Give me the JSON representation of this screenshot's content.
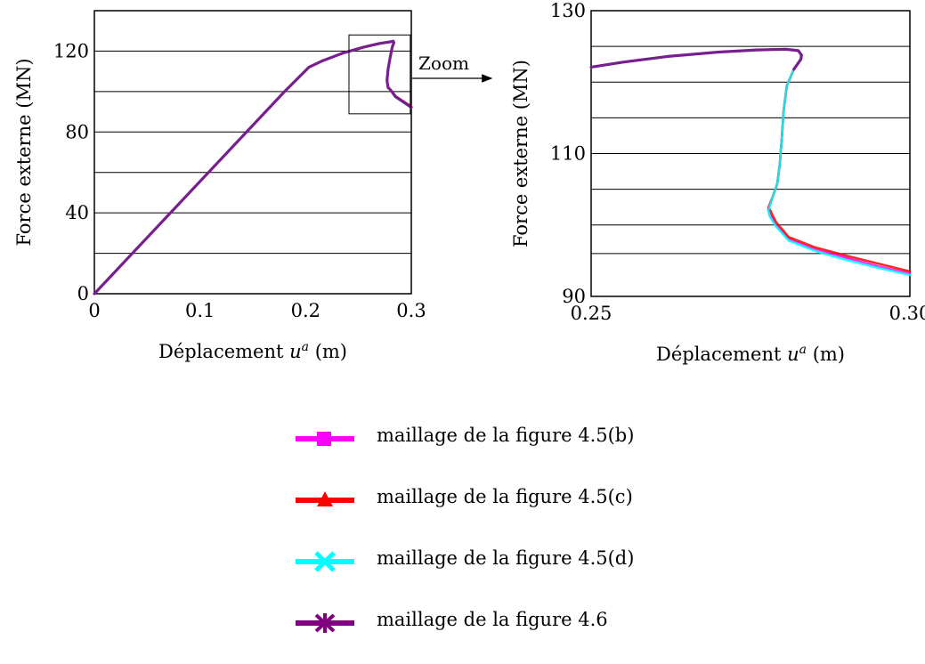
{
  "annotation": {
    "zoom_label": "Zoom"
  },
  "legend": [
    {
      "label": "maillage de la figure 4.5(b)",
      "color": "#ff00ff",
      "marker": "square"
    },
    {
      "label": "maillage de la figure 4.5(c)",
      "color": "#ff0000",
      "marker": "triangle"
    },
    {
      "label": "maillage de la figure 4.5(d)",
      "color": "#00ffff",
      "marker": "x"
    },
    {
      "label": "maillage de la figure 4.6",
      "color": "#800080",
      "marker": "star"
    }
  ],
  "chart_data": [
    {
      "type": "line",
      "xlabel_prefix": "Déplacement ",
      "xlabel_var": "u",
      "xlabel_sup": "a",
      "xlabel_suffix": " (m)",
      "ylabel": "Force externe (MN)",
      "xlim": [
        0,
        0.3
      ],
      "ylim": [
        0,
        140
      ],
      "xticks": [
        0,
        0.1,
        0.2,
        0.3
      ],
      "xtick_labels": [
        "0",
        "0.1",
        "0.2",
        "0.3"
      ],
      "yticks": [
        0,
        40,
        80,
        120
      ],
      "ytick_labels": [
        "0",
        "40",
        "80",
        "120"
      ],
      "grid_y": [
        20,
        40,
        60,
        80,
        100,
        120
      ],
      "zoom_box": {
        "x": [
          0.241,
          0.299
        ],
        "y": [
          89,
          128
        ]
      },
      "series": [
        {
          "color": "#ff00ff",
          "x": [
            0,
            0.18,
            0.203,
            0.215,
            0.235,
            0.255,
            0.27,
            0.28,
            0.283,
            0.2835,
            0.282,
            0.28,
            0.278,
            0.277,
            0.278,
            0.28,
            0.285,
            0.292,
            0.3
          ],
          "y": [
            0,
            100,
            112,
            115,
            119,
            122,
            123.8,
            124.6,
            124.9,
            124.2,
            122,
            117,
            111,
            105.5,
            102,
            101,
            97.5,
            95,
            92.2
          ]
        },
        {
          "color": "#ff0000",
          "x": [
            0,
            0.18,
            0.203,
            0.215,
            0.235,
            0.255,
            0.27,
            0.28,
            0.283,
            0.2835,
            0.282,
            0.28,
            0.278,
            0.277,
            0.278,
            0.28,
            0.285,
            0.292,
            0.3
          ],
          "y": [
            0,
            100,
            112,
            115,
            119,
            122,
            123.8,
            124.6,
            124.9,
            124.2,
            122,
            117,
            111,
            105.5,
            102,
            101,
            97.7,
            95.3,
            92.6
          ]
        },
        {
          "color": "#00ffff",
          "x": [
            0,
            0.18,
            0.203,
            0.215,
            0.235,
            0.255,
            0.27,
            0.28,
            0.283,
            0.2835,
            0.282,
            0.28,
            0.278,
            0.277,
            0.278,
            0.28,
            0.285,
            0.292,
            0.3
          ],
          "y": [
            0,
            100,
            112,
            115,
            119,
            122,
            123.8,
            124.6,
            124.9,
            124.2,
            122,
            117,
            111,
            105.5,
            102,
            101,
            97.3,
            94.8,
            92
          ]
        },
        {
          "color": "#800080",
          "x": [
            0,
            0.18,
            0.203,
            0.215,
            0.235,
            0.255,
            0.27,
            0.28,
            0.283,
            0.2835,
            0.282,
            0.28,
            0.278,
            0.277,
            0.278,
            0.28,
            0.285,
            0.292,
            0.3
          ],
          "y": [
            0,
            100,
            112,
            115,
            119,
            122,
            123.8,
            124.6,
            124.9,
            124.2,
            122,
            117,
            111,
            105.5,
            102,
            101,
            97.5,
            95,
            92.2
          ]
        }
      ]
    },
    {
      "type": "line",
      "xlabel_prefix": "Déplacement ",
      "xlabel_var": "u",
      "xlabel_sup": "a",
      "xlabel_suffix": " (m)",
      "ylabel": "Force externe (MN)",
      "xlim": [
        0.25,
        0.3
      ],
      "ylim": [
        90,
        130
      ],
      "xticks": [
        0.25,
        0.3
      ],
      "xtick_labels": [
        "0.25",
        "0.30"
      ],
      "yticks": [
        90,
        110,
        130
      ],
      "ytick_labels": [
        "90",
        "110",
        "130"
      ],
      "grid_y": [
        96,
        100,
        105,
        110,
        115,
        120,
        125
      ],
      "series": [
        {
          "color": "#ff00ff",
          "x": [
            0.25,
            0.255,
            0.262,
            0.27,
            0.276,
            0.2805,
            0.2825,
            0.283,
            0.2829,
            0.2818,
            0.2807,
            0.2802,
            0.2799,
            0.2796,
            0.2792,
            0.2785,
            0.2778,
            0.278,
            0.279,
            0.281,
            0.285,
            0.29,
            0.295,
            0.3
          ],
          "y": [
            122.1,
            122.8,
            123.6,
            124.2,
            124.5,
            124.6,
            124.4,
            123.8,
            123.2,
            121.8,
            119.5,
            116,
            112,
            108.5,
            105.8,
            104,
            102.2,
            101.5,
            100,
            98,
            96.6,
            95.4,
            94.2,
            93.2
          ]
        },
        {
          "color": "#ff0000",
          "x": [
            0.25,
            0.255,
            0.262,
            0.27,
            0.276,
            0.2805,
            0.2825,
            0.283,
            0.2829,
            0.2818,
            0.2807,
            0.2802,
            0.2799,
            0.2796,
            0.2792,
            0.2785,
            0.2778,
            0.278,
            0.279,
            0.281,
            0.285,
            0.29,
            0.295,
            0.3
          ],
          "y": [
            122.1,
            122.8,
            123.6,
            124.2,
            124.5,
            124.6,
            124.4,
            123.8,
            123.2,
            121.8,
            119.5,
            116,
            112,
            108.5,
            105.8,
            104,
            102.4,
            102.2,
            100.4,
            98.3,
            96.9,
            95.7,
            94.6,
            93.5
          ]
        },
        {
          "color": "#00ffff",
          "x": [
            0.25,
            0.255,
            0.262,
            0.27,
            0.276,
            0.2805,
            0.2825,
            0.283,
            0.2829,
            0.2818,
            0.2807,
            0.2802,
            0.2799,
            0.2796,
            0.2792,
            0.2785,
            0.2778,
            0.278,
            0.279,
            0.281,
            0.285,
            0.29,
            0.295,
            0.3
          ],
          "y": [
            122.1,
            122.8,
            123.6,
            124.2,
            124.5,
            124.6,
            124.4,
            123.8,
            123.2,
            121.8,
            119.5,
            116,
            112,
            108.5,
            105.8,
            104,
            102,
            101.2,
            99.8,
            97.8,
            96.4,
            95.1,
            94,
            93
          ]
        },
        {
          "color": "#800080",
          "x": [
            0.25,
            0.255,
            0.262,
            0.27,
            0.276,
            0.2805,
            0.2825,
            0.283,
            0.2829,
            0.2818
          ],
          "y": [
            122.1,
            122.8,
            123.6,
            124.2,
            124.5,
            124.6,
            124.4,
            123.8,
            123.2,
            121.8
          ]
        }
      ]
    }
  ]
}
